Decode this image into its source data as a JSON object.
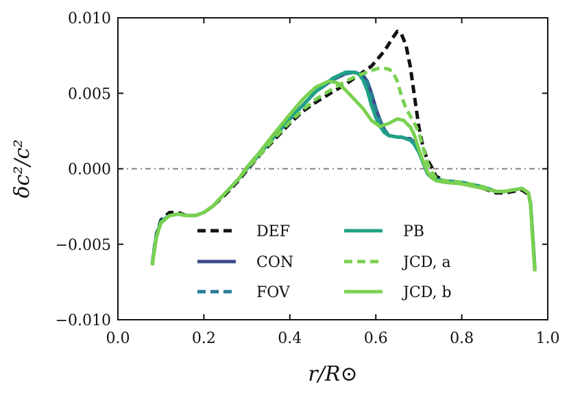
{
  "chart_data": {
    "type": "line",
    "title": "",
    "xlabel": "r/R⊙",
    "ylabel": "δc²/c²",
    "xlim": [
      0.0,
      1.0
    ],
    "ylim": [
      -0.01,
      0.01
    ],
    "x_ticks": [
      0.0,
      0.2,
      0.4,
      0.6,
      0.8,
      1.0
    ],
    "x_tick_labels": [
      "0.0",
      "0.2",
      "0.4",
      "0.6",
      "0.8",
      "1.0"
    ],
    "y_ticks": [
      -0.01,
      -0.005,
      0.0,
      0.005,
      0.01
    ],
    "y_tick_labels": [
      "−0.010",
      "−0.005",
      "0.000",
      "0.005",
      "0.010"
    ],
    "grid": false,
    "zero_line": {
      "y": 0.0,
      "style": "dash-dot",
      "color": "#7f7f7f"
    },
    "legend": {
      "placement": "lower-center",
      "columns": 2
    },
    "series": [
      {
        "name": "DEF",
        "color": "#111111",
        "style": "dashed",
        "x": [
          0.08,
          0.085,
          0.09,
          0.1,
          0.12,
          0.14,
          0.16,
          0.18,
          0.2,
          0.22,
          0.25,
          0.28,
          0.3,
          0.33,
          0.36,
          0.4,
          0.43,
          0.46,
          0.5,
          0.53,
          0.56,
          0.59,
          0.62,
          0.64,
          0.65,
          0.66,
          0.67,
          0.68,
          0.69,
          0.7,
          0.71,
          0.72,
          0.73,
          0.74,
          0.76,
          0.8,
          0.85,
          0.88,
          0.9,
          0.92,
          0.94,
          0.955,
          0.96,
          0.965,
          0.97
        ],
        "y": [
          -0.0063,
          -0.0052,
          -0.0043,
          -0.0034,
          -0.0029,
          -0.0029,
          -0.0031,
          -0.0031,
          -0.0029,
          -0.0025,
          -0.0017,
          -0.0008,
          -0.0001,
          0.0009,
          0.0018,
          0.003,
          0.0038,
          0.0044,
          0.0051,
          0.0056,
          0.0062,
          0.0068,
          0.0078,
          0.0087,
          0.0091,
          0.0089,
          0.0082,
          0.0068,
          0.0048,
          0.0028,
          0.0014,
          0.0006,
          0.0001,
          -0.0005,
          -0.0008,
          -0.0009,
          -0.0013,
          -0.0016,
          -0.0016,
          -0.0015,
          -0.0014,
          -0.0017,
          -0.0023,
          -0.0045,
          -0.0068
        ]
      },
      {
        "name": "CON",
        "color": "#3d4b8c",
        "style": "solid",
        "x": [
          0.08,
          0.085,
          0.09,
          0.1,
          0.12,
          0.14,
          0.16,
          0.18,
          0.2,
          0.22,
          0.25,
          0.28,
          0.3,
          0.33,
          0.36,
          0.4,
          0.43,
          0.46,
          0.5,
          0.53,
          0.55,
          0.57,
          0.58,
          0.59,
          0.6,
          0.61,
          0.62,
          0.63,
          0.65,
          0.66,
          0.67,
          0.68,
          0.69,
          0.7,
          0.71,
          0.72,
          0.73,
          0.74,
          0.76,
          0.8,
          0.85,
          0.88,
          0.9,
          0.92,
          0.94,
          0.955,
          0.96,
          0.965,
          0.97
        ],
        "y": [
          -0.0063,
          -0.0053,
          -0.0044,
          -0.0035,
          -0.0031,
          -0.003,
          -0.0031,
          -0.0031,
          -0.0029,
          -0.0025,
          -0.0016,
          -0.0007,
          0.0,
          0.001,
          0.002,
          0.0033,
          0.0042,
          0.0051,
          0.0059,
          0.0063,
          0.0064,
          0.0062,
          0.0058,
          0.005,
          0.004,
          0.0032,
          0.0026,
          0.0022,
          0.0021,
          0.0021,
          0.002,
          0.002,
          0.0017,
          0.0012,
          0.0004,
          -0.0003,
          -0.0006,
          -0.0007,
          -0.0008,
          -0.0009,
          -0.0012,
          -0.0015,
          -0.0015,
          -0.0014,
          -0.0013,
          -0.0016,
          -0.0023,
          -0.0045,
          -0.0066
        ]
      },
      {
        "name": "FOV",
        "color": "#2a7a96",
        "style": "dashed",
        "x": [
          0.08,
          0.085,
          0.09,
          0.1,
          0.12,
          0.14,
          0.16,
          0.18,
          0.2,
          0.22,
          0.25,
          0.28,
          0.3,
          0.33,
          0.36,
          0.4,
          0.43,
          0.46,
          0.5,
          0.53,
          0.55,
          0.57,
          0.58,
          0.59,
          0.6,
          0.61,
          0.62,
          0.63,
          0.65,
          0.66,
          0.67,
          0.68,
          0.69,
          0.7,
          0.71,
          0.72,
          0.73,
          0.74,
          0.76,
          0.8,
          0.85,
          0.88,
          0.9,
          0.92,
          0.94,
          0.955,
          0.96,
          0.965,
          0.97
        ],
        "y": [
          -0.0063,
          -0.0053,
          -0.0044,
          -0.0035,
          -0.0031,
          -0.003,
          -0.0031,
          -0.0031,
          -0.0029,
          -0.0025,
          -0.0016,
          -0.0007,
          0.0,
          0.001,
          0.002,
          0.0033,
          0.0042,
          0.0051,
          0.0059,
          0.0063,
          0.0064,
          0.0062,
          0.0058,
          0.005,
          0.004,
          0.0032,
          0.0026,
          0.0022,
          0.0021,
          0.0021,
          0.002,
          0.0019,
          0.0016,
          0.0011,
          0.0004,
          -0.0003,
          -0.0006,
          -0.0007,
          -0.0008,
          -0.0009,
          -0.0012,
          -0.0015,
          -0.0015,
          -0.0014,
          -0.0013,
          -0.0016,
          -0.0023,
          -0.0045,
          -0.0066
        ]
      },
      {
        "name": "PB",
        "color": "#1fa187",
        "style": "solid",
        "x": [
          0.08,
          0.085,
          0.09,
          0.1,
          0.12,
          0.14,
          0.16,
          0.18,
          0.2,
          0.22,
          0.25,
          0.28,
          0.3,
          0.33,
          0.36,
          0.4,
          0.43,
          0.46,
          0.5,
          0.53,
          0.545,
          0.56,
          0.57,
          0.58,
          0.59,
          0.6,
          0.61,
          0.62,
          0.63,
          0.65,
          0.66,
          0.67,
          0.68,
          0.69,
          0.7,
          0.71,
          0.72,
          0.73,
          0.74,
          0.76,
          0.8,
          0.85,
          0.88,
          0.9,
          0.92,
          0.94,
          0.955,
          0.96,
          0.965,
          0.97
        ],
        "y": [
          -0.0063,
          -0.0053,
          -0.0044,
          -0.0035,
          -0.0031,
          -0.003,
          -0.0031,
          -0.0031,
          -0.0029,
          -0.0025,
          -0.0016,
          -0.0007,
          0.0,
          0.001,
          0.002,
          0.0033,
          0.0042,
          0.0051,
          0.006,
          0.0064,
          0.0064,
          0.0063,
          0.0059,
          0.0052,
          0.0042,
          0.0034,
          0.0028,
          0.0024,
          0.0022,
          0.0021,
          0.0021,
          0.002,
          0.0019,
          0.0016,
          0.0011,
          0.0004,
          -0.0003,
          -0.0006,
          -0.0007,
          -0.0008,
          -0.0009,
          -0.0012,
          -0.0015,
          -0.0015,
          -0.0014,
          -0.0013,
          -0.0016,
          -0.0023,
          -0.0045,
          -0.0066
        ]
      },
      {
        "name": "JCD, a",
        "color": "#7ad151",
        "style": "dashed",
        "x": [
          0.08,
          0.085,
          0.09,
          0.1,
          0.12,
          0.14,
          0.16,
          0.18,
          0.2,
          0.22,
          0.25,
          0.28,
          0.3,
          0.33,
          0.36,
          0.4,
          0.43,
          0.46,
          0.5,
          0.53,
          0.56,
          0.59,
          0.61,
          0.63,
          0.64,
          0.65,
          0.66,
          0.67,
          0.68,
          0.69,
          0.7,
          0.71,
          0.72,
          0.73,
          0.74,
          0.76,
          0.8,
          0.85,
          0.88,
          0.9,
          0.92,
          0.94,
          0.955,
          0.96,
          0.965,
          0.97
        ],
        "y": [
          -0.0064,
          -0.0054,
          -0.0045,
          -0.0036,
          -0.0031,
          -0.003,
          -0.0031,
          -0.0031,
          -0.0029,
          -0.0025,
          -0.0016,
          -0.0007,
          0.0,
          0.0009,
          0.0019,
          0.0031,
          0.0039,
          0.0046,
          0.0053,
          0.0058,
          0.0062,
          0.0065,
          0.0067,
          0.0066,
          0.0064,
          0.0058,
          0.0048,
          0.004,
          0.0035,
          0.003,
          0.0024,
          0.0014,
          0.0004,
          -0.0002,
          -0.0006,
          -0.0008,
          -0.0009,
          -0.0012,
          -0.0015,
          -0.0015,
          -0.0014,
          -0.0013,
          -0.0016,
          -0.0023,
          -0.0045,
          -0.0068
        ]
      },
      {
        "name": "JCD, b",
        "color": "#7ad151",
        "style": "solid",
        "x": [
          0.08,
          0.085,
          0.09,
          0.1,
          0.12,
          0.14,
          0.16,
          0.18,
          0.2,
          0.22,
          0.25,
          0.28,
          0.3,
          0.33,
          0.36,
          0.4,
          0.43,
          0.46,
          0.49,
          0.51,
          0.53,
          0.55,
          0.57,
          0.59,
          0.61,
          0.63,
          0.65,
          0.665,
          0.675,
          0.68,
          0.69,
          0.7,
          0.71,
          0.72,
          0.73,
          0.74,
          0.76,
          0.8,
          0.85,
          0.88,
          0.9,
          0.92,
          0.94,
          0.955,
          0.96,
          0.965,
          0.97
        ],
        "y": [
          -0.0064,
          -0.0054,
          -0.0045,
          -0.0036,
          -0.0031,
          -0.003,
          -0.0031,
          -0.0031,
          -0.0029,
          -0.0025,
          -0.0016,
          -0.0007,
          0.0001,
          0.0011,
          0.0022,
          0.0036,
          0.0046,
          0.0054,
          0.0058,
          0.0057,
          0.0052,
          0.0046,
          0.004,
          0.0032,
          0.0028,
          0.003,
          0.0033,
          0.0032,
          0.0029,
          0.0028,
          0.0022,
          0.0013,
          0.0005,
          -0.0002,
          -0.0006,
          -0.0008,
          -0.0009,
          -0.001,
          -0.0013,
          -0.0015,
          -0.0015,
          -0.0014,
          -0.0013,
          -0.0016,
          -0.0024,
          -0.0048,
          -0.0068
        ]
      }
    ]
  }
}
